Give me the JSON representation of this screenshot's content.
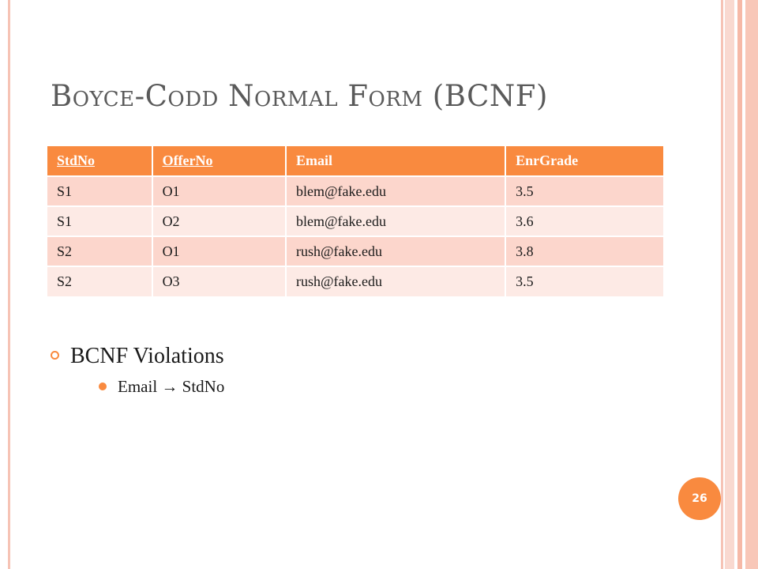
{
  "slide": {
    "title": "Boyce-Codd Normal Form (BCNF)",
    "page_number": "26"
  },
  "table": {
    "headers": [
      "StdNo",
      "OfferNo",
      "Email",
      "EnrGrade"
    ],
    "underlined_headers": [
      "StdNo",
      "OfferNo"
    ],
    "rows": [
      [
        "S1",
        "O1",
        "blem@fake.edu",
        "3.5"
      ],
      [
        "S1",
        "O2",
        "blem@fake.edu",
        "3.6"
      ],
      [
        "S2",
        "O1",
        "rush@fake.edu",
        "3.8"
      ],
      [
        "S2",
        "O3",
        "rush@fake.edu",
        "3.5"
      ]
    ]
  },
  "bullets": {
    "main": "BCNF Violations",
    "sub": [
      "Email → StdNo"
    ]
  },
  "colors": {
    "accent": "#f98a3f",
    "row_odd": "#fcd6cc",
    "row_even": "#fdeae5",
    "title": "#5a5a5a"
  }
}
